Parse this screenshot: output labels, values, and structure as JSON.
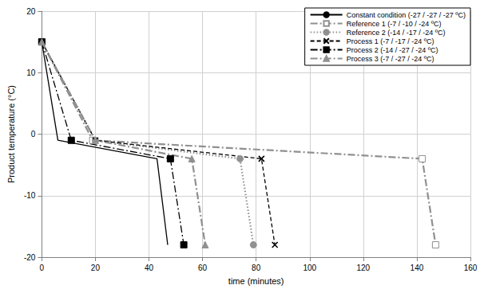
{
  "chart_data": {
    "type": "line",
    "x_label": "time (minutes)",
    "y_label": "Product temperature (°C)",
    "xlim": [
      0,
      160
    ],
    "xticks": [
      0,
      20,
      40,
      60,
      80,
      100,
      120,
      140,
      160
    ],
    "ylim": [
      -20,
      20
    ],
    "yticks": [
      -20,
      -10,
      0,
      10,
      20
    ],
    "grid": true,
    "legend": "upper right",
    "series": [
      {
        "name": "Constant condition (-27 / -27 / -27 ºC)",
        "color": "#000000",
        "marker": "none",
        "line_style": "solid",
        "x": [
          0,
          6,
          43,
          47
        ],
        "values": [
          15,
          -1,
          -4,
          -18
        ]
      },
      {
        "name": "Reference 1 (-7 / -10 / -24 ºC)",
        "color": "#909090",
        "marker": "open_square",
        "line_style": "dashdot",
        "x": [
          0,
          19,
          142,
          147
        ],
        "values": [
          15,
          -1,
          -4,
          -18
        ]
      },
      {
        "name": "Reference 2 (-14 / -17 / -24 ºC)",
        "color": "#909090",
        "marker": "circle",
        "line_style": "dotted",
        "x": [
          0,
          20,
          74,
          79
        ],
        "values": [
          15,
          -1,
          -4,
          -18
        ]
      },
      {
        "name": "Process 1 (-7 / -17 / -24 ºC)",
        "color": "#000000",
        "marker": "x",
        "line_style": "dashed",
        "x": [
          0,
          20,
          82,
          87
        ],
        "values": [
          15,
          -1,
          -4,
          -18
        ]
      },
      {
        "name": "Process 2 (-14 / -27 / -24 ºC)",
        "color": "#000000",
        "marker": "square",
        "line_style": "dashdot",
        "x": [
          0,
          11,
          48,
          53
        ],
        "values": [
          15,
          -1,
          -4,
          -18
        ]
      },
      {
        "name": "Process 3 (-7 / -27 / -24 ºC)",
        "color": "#909090",
        "marker": "triangle",
        "line_style": "dashdot",
        "x": [
          0,
          20,
          56,
          61
        ],
        "values": [
          15,
          -1,
          -4,
          -18
        ]
      }
    ]
  }
}
